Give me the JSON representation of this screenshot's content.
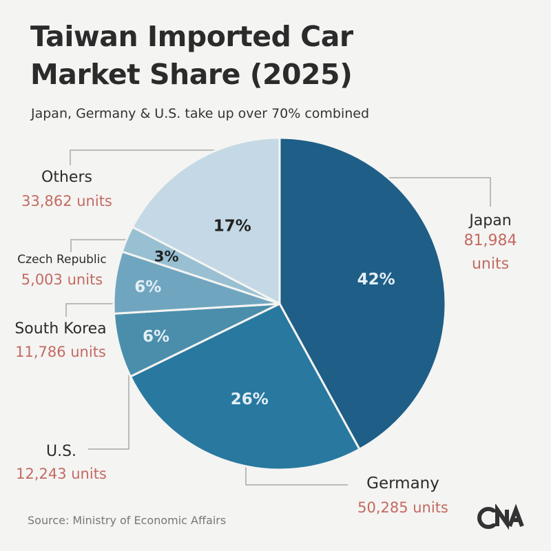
{
  "chart_data": {
    "type": "pie",
    "title": "Taiwan Imported Car Market Share (2025)",
    "subtitle": "Japan, Germany & U.S. take up over 70% combined",
    "slices": [
      {
        "name": "Japan",
        "percent_label": "42%",
        "units_label": "81,984 units",
        "value": 81984,
        "color": "#1e5e87"
      },
      {
        "name": "Germany",
        "percent_label": "26%",
        "units_label": "50,285 units",
        "value": 50285,
        "color": "#2878a0"
      },
      {
        "name": "U.S.",
        "percent_label": "6%",
        "units_label": "12,243 units",
        "value": 12243,
        "color": "#4a8eac"
      },
      {
        "name": "South Korea",
        "percent_label": "6%",
        "units_label": "11,786 units",
        "value": 11786,
        "color": "#70a5c0"
      },
      {
        "name": "Czech Republic",
        "percent_label": "3%",
        "units_label": "5,003 units",
        "value": 5003,
        "color": "#98c0d2"
      },
      {
        "name": "Others",
        "percent_label": "17%",
        "units_label": "33,862 units",
        "value": 33862,
        "color": "#c4d9e5"
      }
    ]
  },
  "source": "Source: Ministry of Economic Affairs",
  "logo_text": "CNA"
}
